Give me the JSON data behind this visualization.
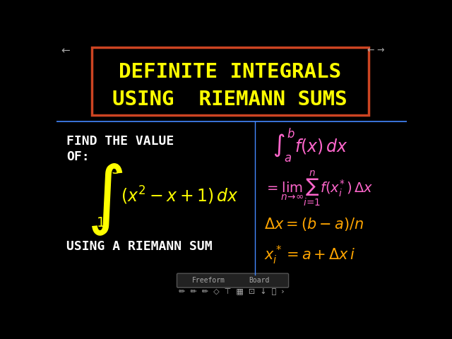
{
  "bg_color": "#000000",
  "title_text_line1": "DEFINITE INTEGRALS",
  "title_text_line2": "USING  RIEMANN SUMS",
  "title_color": "#FFFF00",
  "title_box_color": "#CC4422",
  "left_text1": "FIND THE VALUE",
  "left_text2": "OF:",
  "left_color": "#FFFFFF",
  "integral_color": "#FFFF00",
  "bottom_text": "USING A RIEMANN SUM",
  "bottom_color": "#FFFFFF",
  "right_color": "#FF66CC",
  "orange_color": "#FFA500",
  "divider_color": "#4488FF"
}
